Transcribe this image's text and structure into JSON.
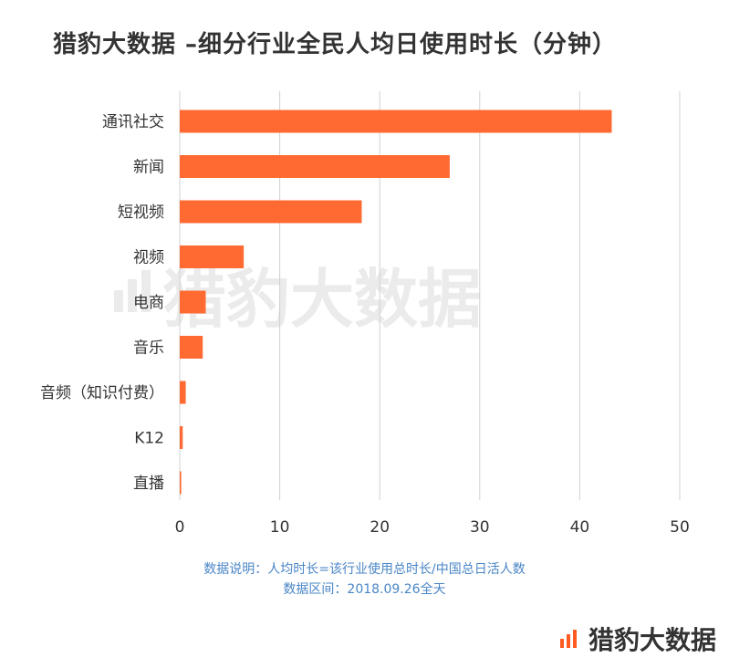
{
  "title": "猎豹大数据 –细分行业全民人均日使用时长（分钟）",
  "colors": {
    "bar": "#ff6a33",
    "grid": "#d0d0d0",
    "brand": "#ff5a1f",
    "note": "#4a86c6",
    "text": "#333333"
  },
  "watermark": "猎豹大数据",
  "notes": {
    "line1": "数据说明：人均时长=该行业使用总时长/中国总日活人数",
    "line2": "数据区间：2018.09.26全天"
  },
  "brand": {
    "icon": "bar-logo-icon",
    "text": "猎豹大数据"
  },
  "chart_data": {
    "type": "bar",
    "orientation": "horizontal",
    "categories": [
      "通讯社交",
      "新闻",
      "短视频",
      "视频",
      "电商",
      "音乐",
      "音频（知识付费）",
      "K12",
      "直播"
    ],
    "values": [
      43.2,
      27,
      18.2,
      6.4,
      2.6,
      2.3,
      0.6,
      0.3,
      0.15
    ],
    "xlim": [
      0,
      50
    ],
    "xticks": [
      0,
      10,
      20,
      30,
      40,
      50
    ],
    "grid": true,
    "legend": "none"
  }
}
